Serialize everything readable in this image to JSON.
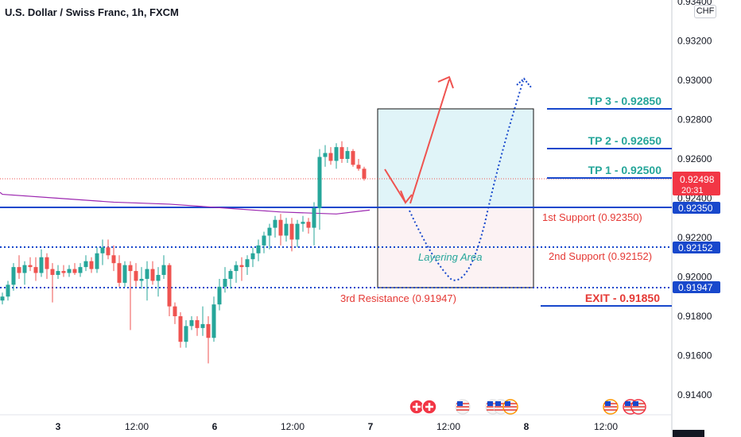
{
  "chart_data": {
    "type": "candlestick",
    "title": "U.S. Dollar / Swiss Franc, 1h, FXCM",
    "currency": "CHF",
    "ylim": [
      0.9125,
      0.934
    ],
    "y_ticks": [
      "0.93400",
      "0.93200",
      "0.93000",
      "0.92800",
      "0.92600",
      "0.92400",
      "0.92200",
      "0.92000",
      "0.91800",
      "0.91600",
      "0.91400"
    ],
    "x_ticks": [
      "3",
      "12:00",
      "6",
      "12:00",
      "7",
      "12:00",
      "8",
      "12:00"
    ],
    "last_price": "0.92498",
    "countdown": "20:31",
    "colors": {
      "up": "#26a69a",
      "down": "#ef5350",
      "level_blue": "#1848cc",
      "teal": "#26a69a",
      "red": "#e53935",
      "ma": "#9c27b0"
    },
    "price_badges": [
      "0.92350",
      "0.92152",
      "0.91947"
    ],
    "levels": {
      "tp3": "TP 3 - 0.92850",
      "tp2": "TP 2 - 0.92650",
      "tp1": "TP 1 - 0.92500",
      "support1": "1st Support (0.92350)",
      "support2": "2nd Support (0.92152)",
      "resistance3": "3rd Resistance  (0.91947)",
      "exit": "EXIT - 0.91850",
      "layering": "Layering Area"
    },
    "candles": [
      [
        0.9188,
        0.9192,
        0.9186,
        0.919
      ],
      [
        0.919,
        0.9198,
        0.9188,
        0.9196
      ],
      [
        0.9196,
        0.9207,
        0.9193,
        0.9205
      ],
      [
        0.9205,
        0.9211,
        0.9199,
        0.9202
      ],
      [
        0.9202,
        0.9208,
        0.9196,
        0.9206
      ],
      [
        0.9206,
        0.921,
        0.9203,
        0.9205
      ],
      [
        0.9205,
        0.921,
        0.9198,
        0.9202
      ],
      [
        0.9202,
        0.9214,
        0.92,
        0.921
      ],
      [
        0.921,
        0.9212,
        0.9199,
        0.9204
      ],
      [
        0.9204,
        0.9207,
        0.9187,
        0.9201
      ],
      [
        0.9201,
        0.9206,
        0.9199,
        0.9203
      ],
      [
        0.9203,
        0.9206,
        0.92,
        0.9202
      ],
      [
        0.9202,
        0.9206,
        0.92,
        0.9204
      ],
      [
        0.9204,
        0.9207,
        0.9201,
        0.9202
      ],
      [
        0.9202,
        0.9207,
        0.92,
        0.9205
      ],
      [
        0.9205,
        0.9211,
        0.9203,
        0.9208
      ],
      [
        0.9208,
        0.921,
        0.9202,
        0.9204
      ],
      [
        0.9204,
        0.9215,
        0.9202,
        0.9212
      ],
      [
        0.9212,
        0.9219,
        0.9206,
        0.9215
      ],
      [
        0.9215,
        0.9219,
        0.9209,
        0.9211
      ],
      [
        0.9211,
        0.9216,
        0.9203,
        0.9207
      ],
      [
        0.9207,
        0.9211,
        0.9195,
        0.9197
      ],
      [
        0.9197,
        0.9208,
        0.9195,
        0.9206
      ],
      [
        0.9206,
        0.9208,
        0.9173,
        0.9203
      ],
      [
        0.9203,
        0.9207,
        0.9195,
        0.9198
      ],
      [
        0.9198,
        0.9205,
        0.9194,
        0.9199
      ],
      [
        0.9199,
        0.9208,
        0.9188,
        0.9204
      ],
      [
        0.9204,
        0.9208,
        0.9196,
        0.9198
      ],
      [
        0.9198,
        0.9205,
        0.919,
        0.9201
      ],
      [
        0.9201,
        0.9211,
        0.9199,
        0.9206
      ],
      [
        0.9206,
        0.9207,
        0.918,
        0.9185
      ],
      [
        0.9185,
        0.9187,
        0.9176,
        0.918
      ],
      [
        0.918,
        0.9182,
        0.9164,
        0.9167
      ],
      [
        0.9167,
        0.9178,
        0.9164,
        0.9175
      ],
      [
        0.9175,
        0.918,
        0.9173,
        0.9178
      ],
      [
        0.9178,
        0.918,
        0.917,
        0.9174
      ],
      [
        0.9174,
        0.9185,
        0.917,
        0.9176
      ],
      [
        0.9176,
        0.918,
        0.9156,
        0.9169
      ],
      [
        0.9169,
        0.919,
        0.9167,
        0.9186
      ],
      [
        0.9186,
        0.9199,
        0.9183,
        0.9195
      ],
      [
        0.9195,
        0.9205,
        0.9192,
        0.9199
      ],
      [
        0.9199,
        0.9204,
        0.9194,
        0.9203
      ],
      [
        0.9203,
        0.9208,
        0.9197,
        0.9206
      ],
      [
        0.9206,
        0.921,
        0.9198,
        0.9205
      ],
      [
        0.9205,
        0.9211,
        0.9201,
        0.9209
      ],
      [
        0.9209,
        0.9215,
        0.9205,
        0.9212
      ],
      [
        0.9212,
        0.9219,
        0.9208,
        0.9216
      ],
      [
        0.9216,
        0.9223,
        0.9212,
        0.9221
      ],
      [
        0.9221,
        0.9227,
        0.9214,
        0.9225
      ],
      [
        0.9225,
        0.9231,
        0.922,
        0.9229
      ],
      [
        0.9229,
        0.9232,
        0.9216,
        0.9221
      ],
      [
        0.9221,
        0.923,
        0.9218,
        0.9227
      ],
      [
        0.9227,
        0.923,
        0.9213,
        0.9219
      ],
      [
        0.9219,
        0.9229,
        0.9215,
        0.9227
      ],
      [
        0.9227,
        0.9231,
        0.9223,
        0.9228
      ],
      [
        0.9228,
        0.923,
        0.9222,
        0.9225
      ],
      [
        0.9225,
        0.9238,
        0.9216,
        0.9235
      ],
      [
        0.9235,
        0.9265,
        0.9224,
        0.9261
      ],
      [
        0.9261,
        0.9267,
        0.9256,
        0.9263
      ],
      [
        0.9263,
        0.9266,
        0.9257,
        0.9259
      ],
      [
        0.9259,
        0.9268,
        0.9255,
        0.9266
      ],
      [
        0.9266,
        0.9269,
        0.9258,
        0.926
      ],
      [
        0.926,
        0.9266,
        0.9258,
        0.9264
      ],
      [
        0.9264,
        0.9265,
        0.9256,
        0.9257
      ],
      [
        0.9257,
        0.926,
        0.9254,
        0.9255
      ],
      [
        0.9255,
        0.9256,
        0.9249,
        0.925
      ]
    ],
    "moving_average": [
      [
        0,
        0.9242
      ],
      [
        10,
        0.924
      ],
      [
        20,
        0.9238
      ],
      [
        30,
        0.9237
      ],
      [
        40,
        0.9235
      ],
      [
        50,
        0.9233
      ],
      [
        60,
        0.9232
      ],
      [
        66,
        0.9234
      ]
    ]
  }
}
